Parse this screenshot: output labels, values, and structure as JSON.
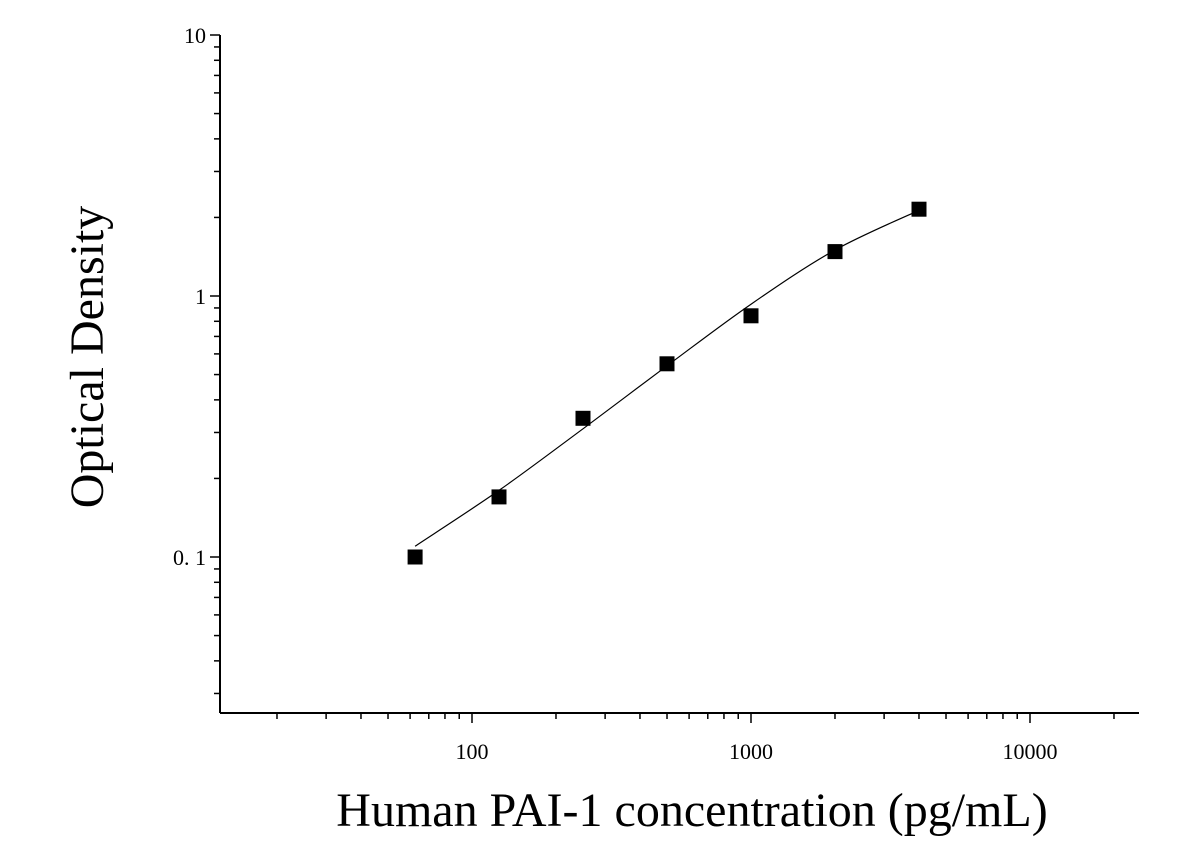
{
  "chart_data": {
    "type": "scatter",
    "title": "",
    "xlabel": "Human PAI-1 concentration (pg/mL)",
    "ylabel": "Optical Density",
    "x_scale": "log",
    "y_scale": "log",
    "xlim": [
      10,
      25000
    ],
    "ylim": [
      0.025,
      10
    ],
    "grid": false,
    "legend": "none",
    "x_ticks": [
      {
        "value": 100,
        "label": "100"
      },
      {
        "value": 1000,
        "label": "1000"
      },
      {
        "value": 10000,
        "label": "10000"
      }
    ],
    "y_ticks": [
      {
        "value": 0.1,
        "label": "0. 1"
      },
      {
        "value": 1,
        "label": "1"
      },
      {
        "value": 10,
        "label": "10"
      }
    ],
    "series": [
      {
        "marker": "square",
        "color": "#000000",
        "x": [
          62.5,
          125,
          250,
          500,
          1000,
          2000,
          4000
        ],
        "y": [
          0.1,
          0.17,
          0.34,
          0.55,
          0.84,
          1.48,
          2.15
        ]
      }
    ],
    "fit_curve": {
      "color": "#000000",
      "x": [
        62.5,
        125,
        250,
        500,
        1000,
        2000,
        4000
      ],
      "y": [
        0.11,
        0.18,
        0.31,
        0.54,
        0.93,
        1.5,
        2.13
      ]
    }
  }
}
